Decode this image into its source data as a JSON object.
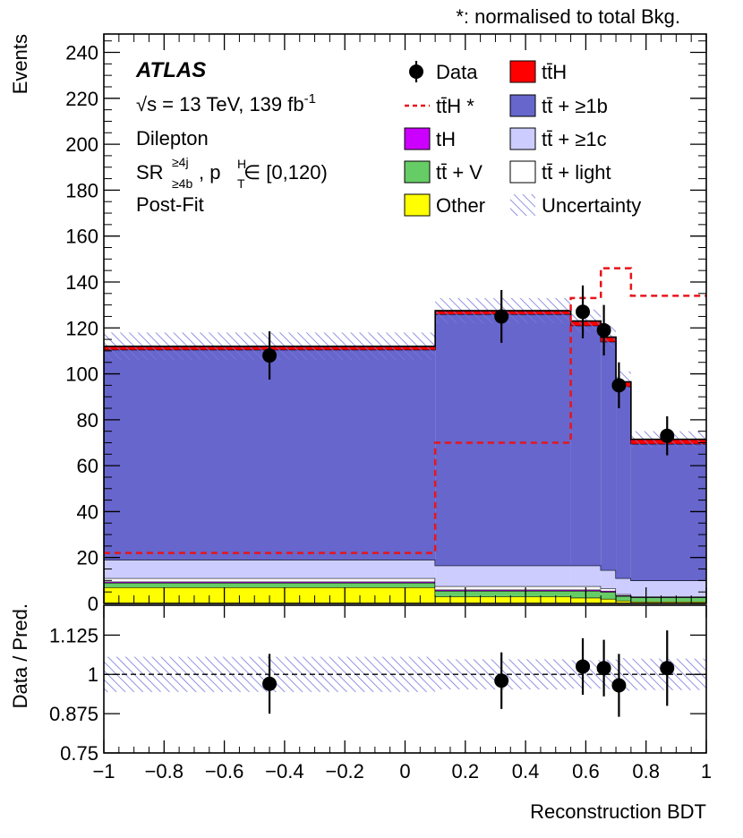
{
  "note": "*: normalised to total Bkg.",
  "colors": {
    "ttH": "#ff0000",
    "tt_1b": "#6666cc",
    "tt_1c": "#ccccff",
    "tt_light": "#ffffff",
    "tH": "#cc00ff",
    "ttV": "#66cc66",
    "other": "#ffff00",
    "ttH_norm": "#e8141b",
    "uncertainty": "#7777dd"
  },
  "labels": {
    "atlas": "ATLAS",
    "energy_prefix": "√s = 13 TeV, 139 fb",
    "energy_sup": "-1",
    "channel": "Dilepton",
    "region_sr": "SR",
    "region_sup": "≥4j",
    "region_sub": "≥4b",
    "region_mid": ", p",
    "region_psup": "H",
    "region_psub": "T",
    "region_range": " ∈ [0,120)",
    "fit": "Post-Fit"
  },
  "legend": [
    {
      "key": "data",
      "label": "Data",
      "style": "marker"
    },
    {
      "key": "ttH",
      "label": "tt̄H",
      "style": "fill"
    },
    {
      "key": "ttH_norm",
      "label": "tt̄H *",
      "style": "dashed"
    },
    {
      "key": "tt_1b",
      "label": "tt̄ + ≥1b",
      "style": "fill"
    },
    {
      "key": "tH",
      "label": "tH",
      "style": "fill"
    },
    {
      "key": "tt_1c",
      "label": "tt̄ + ≥1c",
      "style": "fill"
    },
    {
      "key": "ttV",
      "label": "tt̄ + V",
      "style": "fill"
    },
    {
      "key": "tt_light",
      "label": "tt̄ + light",
      "style": "fill"
    },
    {
      "key": "other",
      "label": "Other",
      "style": "fill"
    },
    {
      "key": "uncertainty",
      "label": "Uncertainty",
      "style": "hatch"
    }
  ],
  "chart_data": [
    {
      "type": "bar",
      "stacked": true,
      "ylabel": "Events",
      "xlim": [
        -1,
        1
      ],
      "ylim": [
        0,
        248
      ],
      "yticks": [
        0,
        20,
        40,
        60,
        80,
        100,
        120,
        140,
        160,
        180,
        200,
        220,
        240
      ],
      "bin_edges": [
        -1,
        0.1,
        0.55,
        0.65,
        0.7,
        0.75,
        1.0
      ],
      "series": [
        {
          "key": "other",
          "values": [
            7,
            3,
            2.5,
            2,
            1.2,
            0.8
          ]
        },
        {
          "key": "ttV",
          "values": [
            2,
            2.5,
            3,
            3,
            2,
            1.8
          ]
        },
        {
          "key": "tH",
          "values": [
            0.5,
            0.5,
            0.5,
            0.5,
            0.3,
            0.2
          ]
        },
        {
          "key": "tt_light",
          "values": [
            1.5,
            1.5,
            1.5,
            1,
            0.5,
            0.2
          ]
        },
        {
          "key": "tt_1c",
          "values": [
            8,
            9,
            9,
            8,
            7,
            7
          ]
        },
        {
          "key": "tt_1b",
          "values": [
            91.5,
            109.5,
            104.5,
            99.5,
            83.5,
            59.5
          ]
        },
        {
          "key": "ttH",
          "values": [
            1.5,
            1.5,
            2,
            2,
            2,
            2
          ]
        }
      ],
      "ttH_normalised": [
        22,
        70,
        133,
        146,
        146,
        134
      ],
      "uncertainty": [
        6,
        5.5,
        5,
        5,
        4.5,
        3.5
      ],
      "data": [
        {
          "x": -0.45,
          "y": 108,
          "err": 10.5
        },
        {
          "x": 0.32,
          "y": 125,
          "err": 11.5
        },
        {
          "x": 0.59,
          "y": 127,
          "err": 11.5
        },
        {
          "x": 0.66,
          "y": 119,
          "err": 11
        },
        {
          "x": 0.71,
          "y": 95,
          "err": 10
        },
        {
          "x": 0.87,
          "y": 73,
          "err": 8.5
        }
      ]
    },
    {
      "type": "scatter",
      "ylabel": "Data / Pred.",
      "xlabel": "Reconstruction BDT",
      "xlim": [
        -1,
        1
      ],
      "ylim": [
        0.75,
        1.22
      ],
      "yticks": [
        0.75,
        0.875,
        1,
        1.125
      ],
      "ytick_labels": [
        "0.75",
        "0.875",
        "1",
        "1.125"
      ],
      "xticks": [
        -1,
        -0.8,
        -0.6,
        -0.4,
        -0.2,
        0,
        0.2,
        0.4,
        0.6,
        0.8,
        1
      ],
      "xtick_labels": [
        "−1",
        "−0.8",
        "−0.6",
        "−0.4",
        "−0.2",
        "0",
        "0.2",
        "0.4",
        "0.6",
        "0.8",
        "1"
      ],
      "bin_edges": [
        -1,
        0.1,
        0.55,
        0.65,
        0.7,
        0.75,
        1.0
      ],
      "band": [
        0.056,
        0.048,
        0.045,
        0.047,
        0.052,
        0.05
      ],
      "points": [
        {
          "x": -0.45,
          "y": 0.97,
          "err": 0.095
        },
        {
          "x": 0.32,
          "y": 0.98,
          "err": 0.09
        },
        {
          "x": 0.59,
          "y": 1.025,
          "err": 0.09
        },
        {
          "x": 0.66,
          "y": 1.02,
          "err": 0.09
        },
        {
          "x": 0.71,
          "y": 0.965,
          "err": 0.1
        },
        {
          "x": 0.87,
          "y": 1.02,
          "err": 0.12
        }
      ]
    }
  ]
}
